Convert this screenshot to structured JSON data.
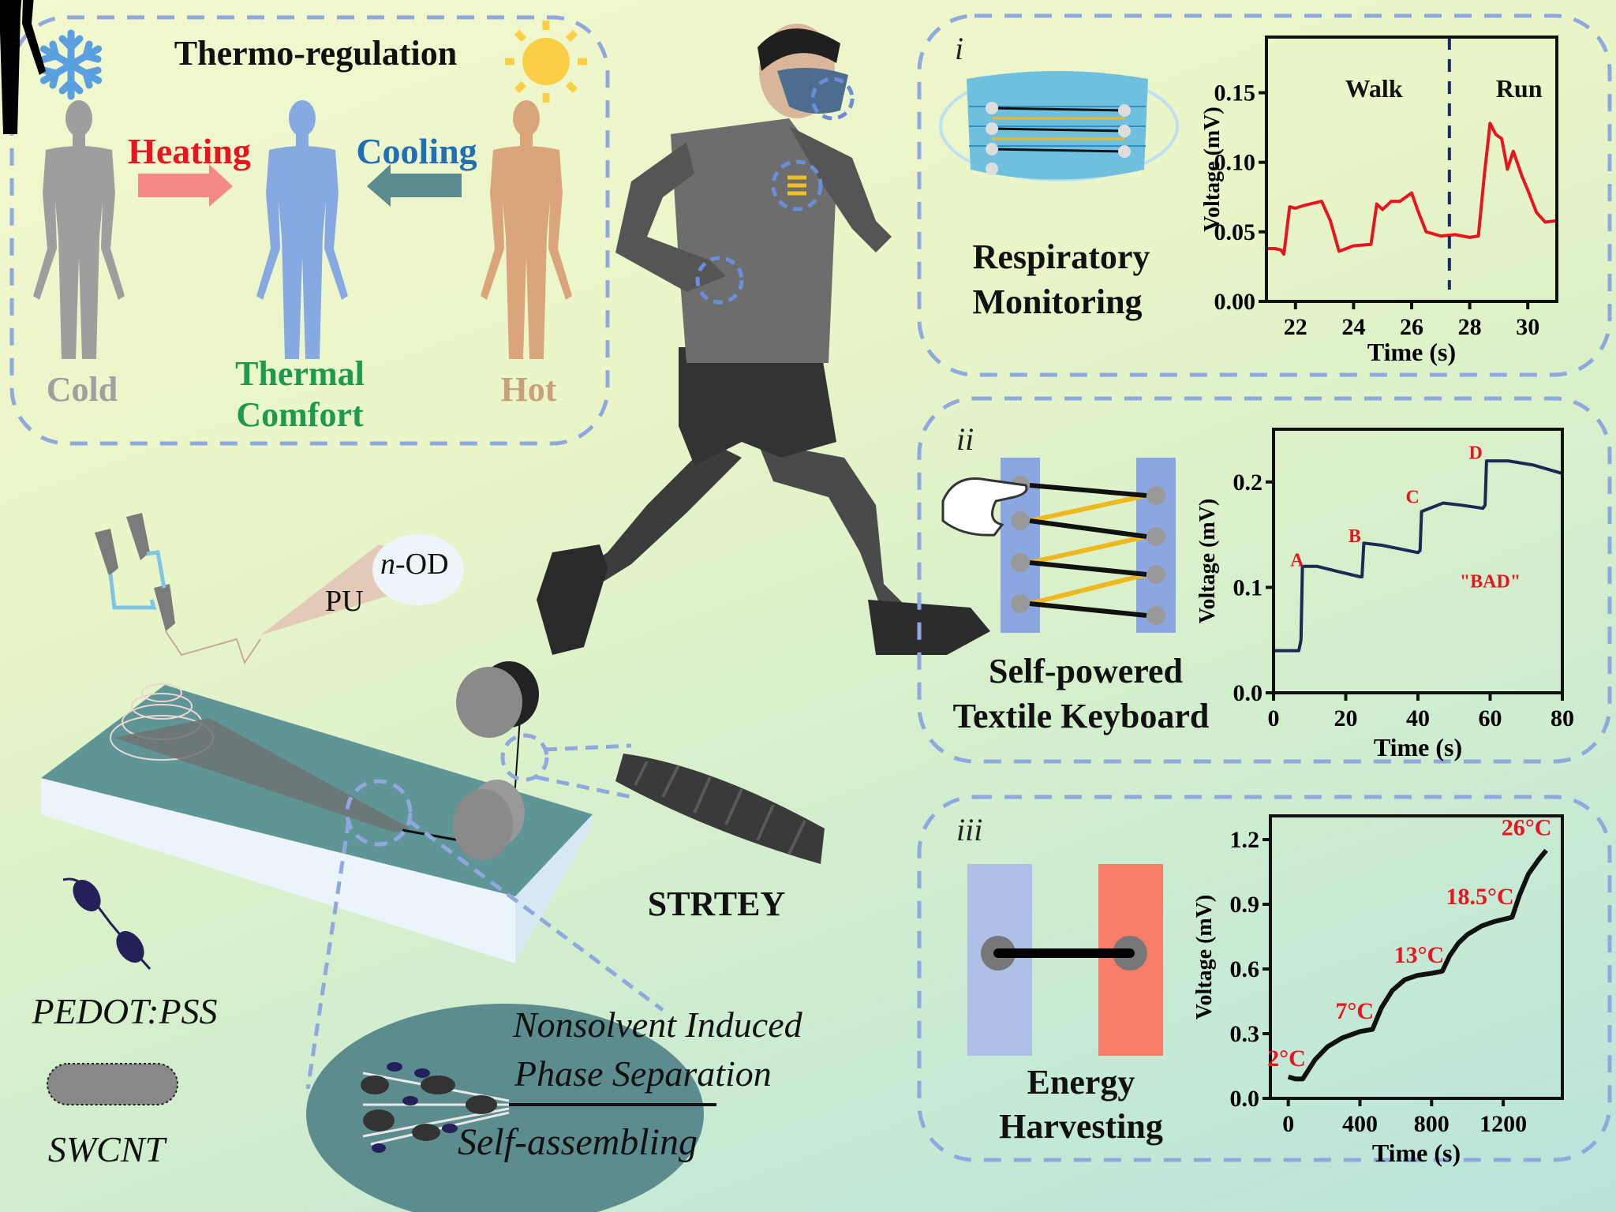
{
  "thermo": {
    "title": "Thermo-regulation",
    "heating": "Heating",
    "cooling": "Cooling",
    "cold": "Cold",
    "comfort_line1": "Thermal",
    "comfort_line2": "Comfort",
    "hot": "Hot",
    "colors": {
      "heating": "#e8141e",
      "cooling": "#1f6fb4",
      "comfort": "#1e9a4f",
      "cold": "#9a9a9a",
      "hot": "#c9a07c"
    },
    "icons": [
      "snowflake-icon",
      "sun-icon"
    ]
  },
  "fabrication": {
    "pu": "PU",
    "nod_prefix": "n",
    "nod_suffix": "-OD",
    "strtey": "STRTEY",
    "pedot": "PEDOT:PSS",
    "swcnt": "SWCNT",
    "nips_line1": "Nonsolvent Induced",
    "nips_line2": "Phase Separation",
    "self_assembling": "Self-assembling"
  },
  "panels": [
    {
      "numeral": "i",
      "label_line1": "Respiratory",
      "label_line2": "Monitoring"
    },
    {
      "numeral": "ii",
      "label_line1": "Self-powered",
      "label_line2": "Textile Keyboard"
    },
    {
      "numeral": "iii",
      "label_line1": "Energy",
      "label_line2": "Harvesting"
    }
  ],
  "chart_data": [
    {
      "type": "line",
      "xlabel": "Time (s)",
      "ylabel": "Voltage (mV)",
      "xlim": [
        21,
        31
      ],
      "ylim": [
        0,
        0.19
      ],
      "xticks": [
        22,
        24,
        26,
        28,
        30
      ],
      "yticks": [
        0.0,
        0.05,
        0.1,
        0.15
      ],
      "ytick_labels": [
        "0.00",
        "0.05",
        "0.10",
        "0.15"
      ],
      "color": "#e8141e",
      "divider_x": 27.3,
      "annotations": [
        {
          "text": "Walk",
          "x": 24.7,
          "y": 0.147
        },
        {
          "text": "Run",
          "x": 29.7,
          "y": 0.147
        }
      ],
      "x": [
        21,
        21.3,
        21.5,
        21.6,
        21.8,
        22,
        22.3,
        22.5,
        22.9,
        23.2,
        23.5,
        24,
        24.6,
        24.8,
        25,
        25.3,
        25.6,
        26,
        26.2,
        26.5,
        27,
        27.5,
        28,
        28.3,
        28.5,
        28.7,
        28.9,
        29.1,
        29.3,
        29.5,
        29.8,
        30,
        30.3,
        30.6,
        31
      ],
      "y": [
        0.038,
        0.038,
        0.037,
        0.034,
        0.068,
        0.067,
        0.069,
        0.07,
        0.072,
        0.058,
        0.036,
        0.04,
        0.041,
        0.07,
        0.066,
        0.072,
        0.072,
        0.078,
        0.066,
        0.05,
        0.047,
        0.048,
        0.046,
        0.047,
        0.09,
        0.128,
        0.12,
        0.117,
        0.095,
        0.108,
        0.09,
        0.08,
        0.064,
        0.057,
        0.058
      ]
    },
    {
      "type": "line",
      "xlabel": "Time (s)",
      "ylabel": "Voltage (mV)",
      "xlim": [
        0,
        80
      ],
      "ylim": [
        0,
        0.25
      ],
      "xticks": [
        0,
        20,
        40,
        60,
        80
      ],
      "yticks": [
        0.0,
        0.1,
        0.2
      ],
      "ytick_labels": [
        "0.0",
        "0.1",
        "0.2"
      ],
      "color": "#1a2a55",
      "annotations": [
        {
          "text": "A",
          "x": 6.5,
          "y": 0.12
        },
        {
          "text": "B",
          "x": 22.5,
          "y": 0.143
        },
        {
          "text": "C",
          "x": 38.5,
          "y": 0.18
        },
        {
          "text": "D",
          "x": 56,
          "y": 0.222
        },
        {
          "text": "\"BAD\"",
          "x": 60,
          "y": 0.1
        }
      ],
      "x": [
        0,
        7,
        7.6,
        8,
        12,
        18,
        24,
        24.5,
        25,
        30,
        40,
        40.6,
        41,
        47,
        52,
        58,
        58.6,
        59,
        65,
        72,
        80
      ],
      "y": [
        0.04,
        0.04,
        0.05,
        0.12,
        0.12,
        0.115,
        0.11,
        0.11,
        0.142,
        0.14,
        0.133,
        0.135,
        0.172,
        0.18,
        0.178,
        0.175,
        0.178,
        0.22,
        0.22,
        0.216,
        0.208
      ]
    },
    {
      "type": "line",
      "xlabel": "Time (s)",
      "ylabel": "Voltage (mV)",
      "xlim": [
        -100,
        1530
      ],
      "ylim": [
        0,
        1.31
      ],
      "xticks": [
        0,
        400,
        800,
        1200
      ],
      "yticks": [
        0.0,
        0.3,
        0.6,
        0.9,
        1.2
      ],
      "ytick_labels": [
        "0.0",
        "0.3",
        "0.6",
        "0.9",
        "1.2"
      ],
      "color": "#111111",
      "annotations": [
        {
          "text": "2°C",
          "x": -10,
          "y": 0.15
        },
        {
          "text": "7°C",
          "x": 370,
          "y": 0.37
        },
        {
          "text": "13°C",
          "x": 730,
          "y": 0.63
        },
        {
          "text": "18.5°C",
          "x": 1070,
          "y": 0.9
        },
        {
          "text": "26°C",
          "x": 1330,
          "y": 1.22
        }
      ],
      "x": [
        0,
        40,
        80,
        150,
        220,
        300,
        400,
        470,
        520,
        580,
        650,
        720,
        800,
        860,
        900,
        950,
        1000,
        1080,
        1150,
        1250,
        1290,
        1340,
        1400,
        1440
      ],
      "y": [
        0.1,
        0.09,
        0.09,
        0.18,
        0.24,
        0.28,
        0.31,
        0.32,
        0.42,
        0.5,
        0.55,
        0.57,
        0.58,
        0.59,
        0.66,
        0.72,
        0.76,
        0.8,
        0.82,
        0.84,
        0.94,
        1.04,
        1.11,
        1.15
      ]
    }
  ]
}
